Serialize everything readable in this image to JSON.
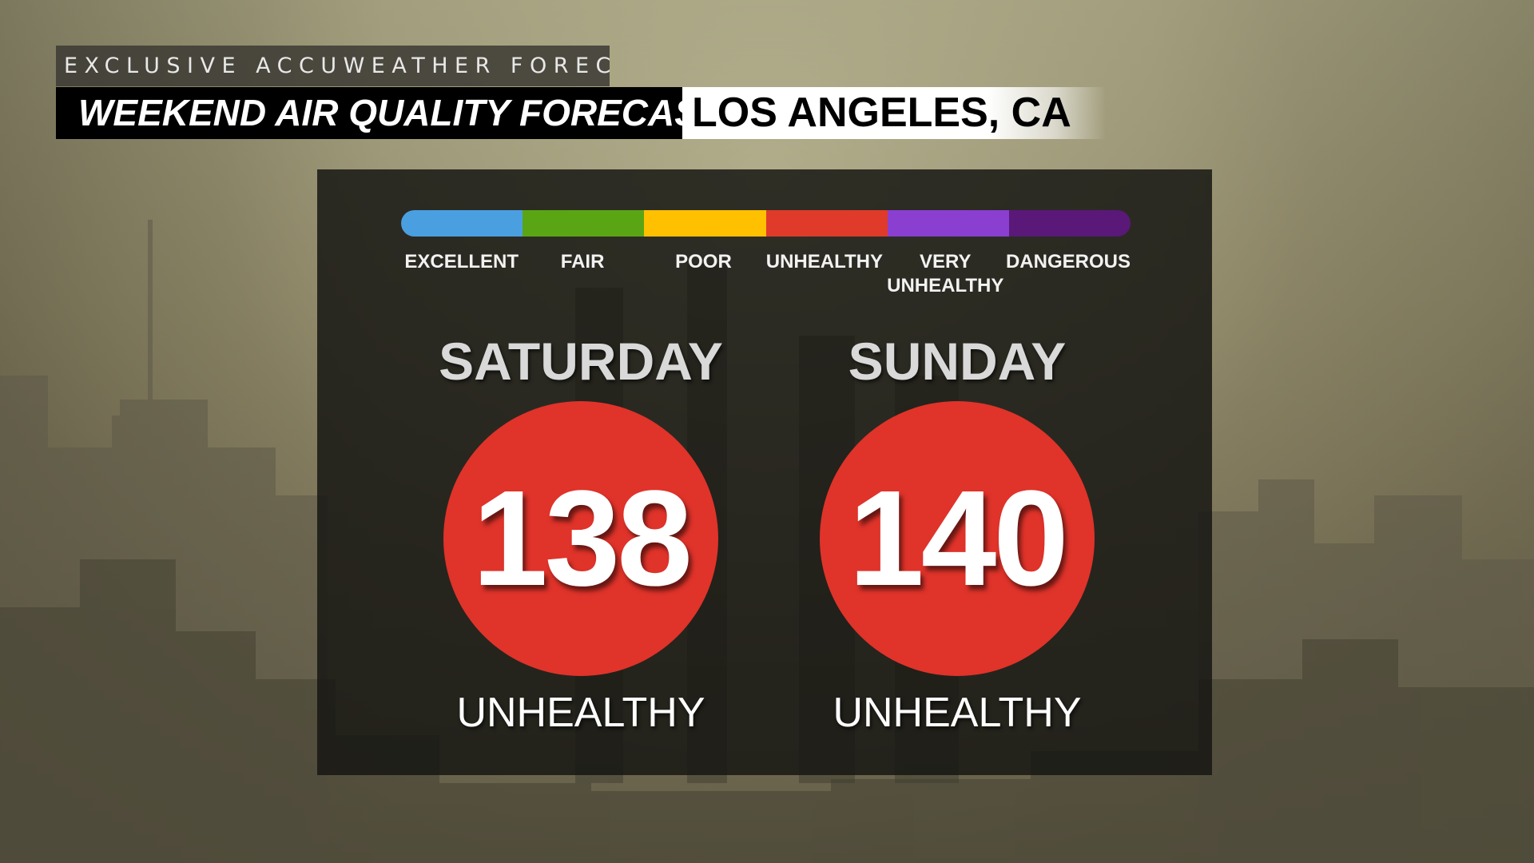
{
  "header": {
    "kicker": "EXCLUSIVE ACCUWEATHER FORECAST",
    "title": "WEEKEND AIR QUALITY FORECAST",
    "location": "LOS ANGELES, CA"
  },
  "scale": {
    "segments": [
      {
        "label_line1": "EXCELLENT",
        "label_line2": "",
        "color": "#4a9fe0"
      },
      {
        "label_line1": "FAIR",
        "label_line2": "",
        "color": "#5aa514"
      },
      {
        "label_line1": "POOR",
        "label_line2": "",
        "color": "#ffc000"
      },
      {
        "label_line1": "UNHEALTHY",
        "label_line2": "",
        "color": "#e03a2a"
      },
      {
        "label_line1": "VERY",
        "label_line2": "UNHEALTHY",
        "color": "#8a3fd1"
      },
      {
        "label_line1": "DANGEROUS",
        "label_line2": "",
        "color": "#5a1878"
      }
    ]
  },
  "forecast": [
    {
      "day": "SATURDAY",
      "aqi": "138",
      "category": "UNHEALTHY",
      "color": "#e0332a"
    },
    {
      "day": "SUNDAY",
      "aqi": "140",
      "category": "UNHEALTHY",
      "color": "#e0332a"
    }
  ],
  "colors": {
    "panel_background": "#16160f",
    "title_bar": "#000000",
    "location_bar": "#ffffff"
  }
}
